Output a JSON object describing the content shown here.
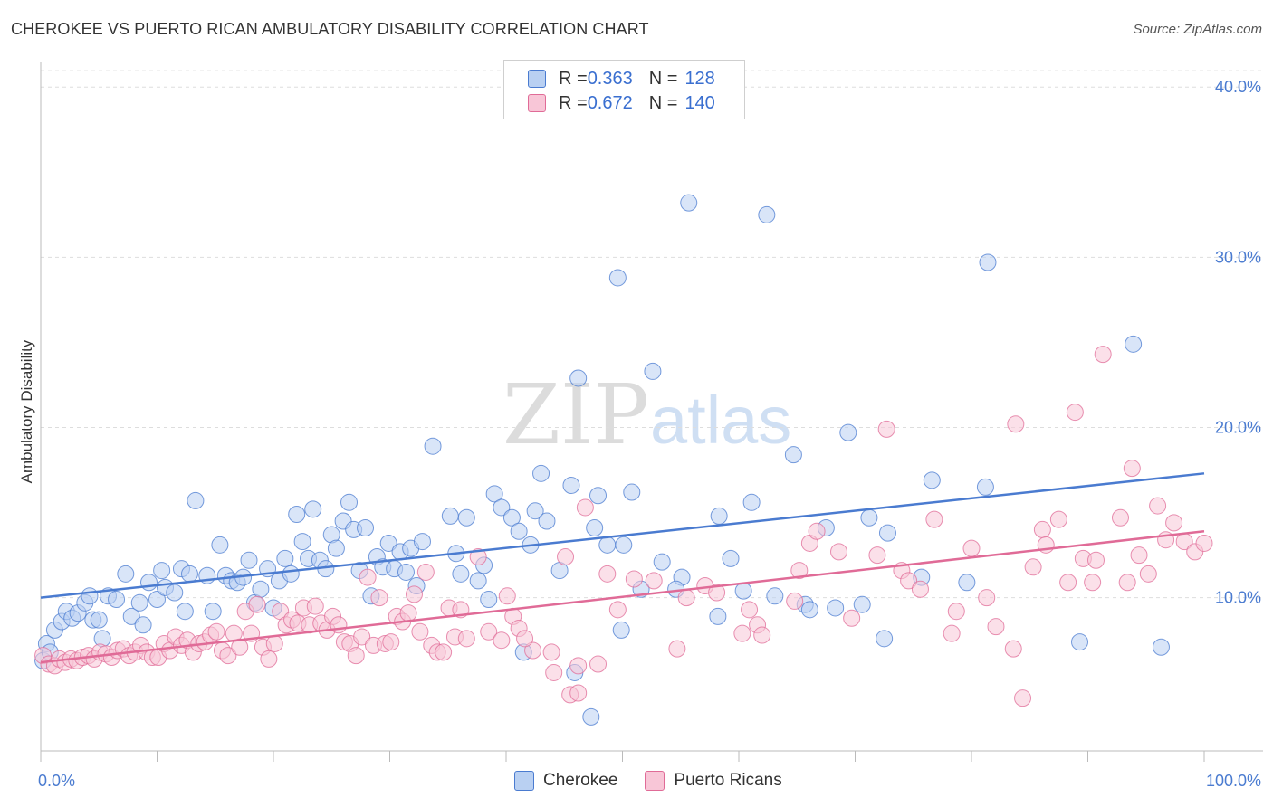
{
  "title": "CHEROKEE VS PUERTO RICAN AMBULATORY DISABILITY CORRELATION CHART",
  "source": "Source: ZipAtlas.com",
  "watermark": {
    "zip": "ZIP",
    "atlas": "atlas"
  },
  "legend_top": [
    {
      "r_label": "R = ",
      "r_value": "0.363",
      "n_label": "N = ",
      "n_value": "128",
      "color": "#4a7bd0",
      "fill": "#b9d0f2"
    },
    {
      "r_label": "R = ",
      "r_value": "0.672",
      "n_label": "N = ",
      "n_value": "140",
      "color": "#e06b97",
      "fill": "#f8c6d7"
    }
  ],
  "legend_bottom": [
    {
      "label": "Cherokee",
      "color": "#4a7bd0",
      "fill": "#b9d0f2"
    },
    {
      "label": "Puerto Ricans",
      "color": "#e06b97",
      "fill": "#f8c6d7"
    }
  ],
  "chart_data": {
    "type": "scatter",
    "title": "CHEROKEE VS PUERTO RICAN AMBULATORY DISABILITY CORRELATION CHART",
    "xlabel": "",
    "ylabel": "Ambulatory Disability",
    "xlim": [
      0,
      100
    ],
    "ylim": [
      1,
      41.5
    ],
    "x_tick_labels": [
      "0.0%",
      "100.0%"
    ],
    "y_ticks": [
      10,
      20,
      30,
      40
    ],
    "y_tick_labels": [
      "10.0%",
      "20.0%",
      "30.0%",
      "40.0%"
    ],
    "grid": "horizontal dashed",
    "legend": "top-center",
    "series": [
      {
        "name": "Cherokee",
        "color": "#4a7bd0",
        "fill": "#b9d0f2",
        "trend": {
          "x": [
            0,
            100
          ],
          "y": [
            10.0,
            17.3
          ]
        },
        "points": [
          [
            0.2,
            6.3
          ],
          [
            0.5,
            7.3
          ],
          [
            0.8,
            6.8
          ],
          [
            1.2,
            8.1
          ],
          [
            1.8,
            8.6
          ],
          [
            2.2,
            9.2
          ],
          [
            2.7,
            8.8
          ],
          [
            3.2,
            9.1
          ],
          [
            3.8,
            9.7
          ],
          [
            4.2,
            10.1
          ],
          [
            4.5,
            8.7
          ],
          [
            5.0,
            8.7
          ],
          [
            5.3,
            7.6
          ],
          [
            5.8,
            10.1
          ],
          [
            6.5,
            9.9
          ],
          [
            7.3,
            11.4
          ],
          [
            7.8,
            8.9
          ],
          [
            8.5,
            9.7
          ],
          [
            8.8,
            8.4
          ],
          [
            9.3,
            10.9
          ],
          [
            10.0,
            9.9
          ],
          [
            10.4,
            11.6
          ],
          [
            10.7,
            10.6
          ],
          [
            11.5,
            10.3
          ],
          [
            12.1,
            11.7
          ],
          [
            12.4,
            9.2
          ],
          [
            12.8,
            11.4
          ],
          [
            13.3,
            15.7
          ],
          [
            14.3,
            11.3
          ],
          [
            14.8,
            9.2
          ],
          [
            15.4,
            13.1
          ],
          [
            15.9,
            11.3
          ],
          [
            16.4,
            11.0
          ],
          [
            16.9,
            10.9
          ],
          [
            17.4,
            11.2
          ],
          [
            17.9,
            12.2
          ],
          [
            18.4,
            9.7
          ],
          [
            18.9,
            10.5
          ],
          [
            19.5,
            11.7
          ],
          [
            20.0,
            9.4
          ],
          [
            20.5,
            11.0
          ],
          [
            21.0,
            12.3
          ],
          [
            21.5,
            11.4
          ],
          [
            22.0,
            14.9
          ],
          [
            22.5,
            13.3
          ],
          [
            23.0,
            12.3
          ],
          [
            23.4,
            15.2
          ],
          [
            24.0,
            12.2
          ],
          [
            24.5,
            11.7
          ],
          [
            25.0,
            13.7
          ],
          [
            25.4,
            12.9
          ],
          [
            26.0,
            14.5
          ],
          [
            26.5,
            15.6
          ],
          [
            26.9,
            14.0
          ],
          [
            27.4,
            11.6
          ],
          [
            27.9,
            14.1
          ],
          [
            28.4,
            10.1
          ],
          [
            28.9,
            12.4
          ],
          [
            29.4,
            11.8
          ],
          [
            29.9,
            13.2
          ],
          [
            30.4,
            11.7
          ],
          [
            30.9,
            12.7
          ],
          [
            31.4,
            11.5
          ],
          [
            31.8,
            12.9
          ],
          [
            32.3,
            10.7
          ],
          [
            32.8,
            13.3
          ],
          [
            33.7,
            18.9
          ],
          [
            35.2,
            14.8
          ],
          [
            35.7,
            12.6
          ],
          [
            36.1,
            11.4
          ],
          [
            36.6,
            14.7
          ],
          [
            37.6,
            11.0
          ],
          [
            38.1,
            11.9
          ],
          [
            38.5,
            9.9
          ],
          [
            39.0,
            16.1
          ],
          [
            39.6,
            15.3
          ],
          [
            40.5,
            14.7
          ],
          [
            41.1,
            13.9
          ],
          [
            41.5,
            6.8
          ],
          [
            42.1,
            13.1
          ],
          [
            42.5,
            15.1
          ],
          [
            43.0,
            17.3
          ],
          [
            43.5,
            14.5
          ],
          [
            44.6,
            11.6
          ],
          [
            45.6,
            16.6
          ],
          [
            45.9,
            5.6
          ],
          [
            46.2,
            22.9
          ],
          [
            47.6,
            14.1
          ],
          [
            47.9,
            16.0
          ],
          [
            48.7,
            13.1
          ],
          [
            49.6,
            28.8
          ],
          [
            49.9,
            8.1
          ],
          [
            50.1,
            13.1
          ],
          [
            50.8,
            16.2
          ],
          [
            51.6,
            10.5
          ],
          [
            52.6,
            23.3
          ],
          [
            55.1,
            11.2
          ],
          [
            55.7,
            33.2
          ],
          [
            58.2,
            8.9
          ],
          [
            58.3,
            14.8
          ],
          [
            59.3,
            12.3
          ],
          [
            60.4,
            10.4
          ],
          [
            61.1,
            15.6
          ],
          [
            62.4,
            32.5
          ],
          [
            63.1,
            10.1
          ],
          [
            65.7,
            9.6
          ],
          [
            64.7,
            18.4
          ],
          [
            66.1,
            9.3
          ],
          [
            67.5,
            14.1
          ],
          [
            68.3,
            9.4
          ],
          [
            69.4,
            19.7
          ],
          [
            70.6,
            9.6
          ],
          [
            71.2,
            14.7
          ],
          [
            72.5,
            7.6
          ],
          [
            72.8,
            13.8
          ],
          [
            75.7,
            11.2
          ],
          [
            76.6,
            16.9
          ],
          [
            79.6,
            10.9
          ],
          [
            81.2,
            16.5
          ],
          [
            81.4,
            29.7
          ],
          [
            89.3,
            7.4
          ],
          [
            93.9,
            24.9
          ],
          [
            96.3,
            7.1
          ],
          [
            54.6,
            10.5
          ],
          [
            53.4,
            12.1
          ],
          [
            47.3,
            3.0
          ]
        ]
      },
      {
        "name": "Puerto Ricans",
        "color": "#e06b97",
        "fill": "#f8c6d7",
        "trend": {
          "x": [
            0,
            100
          ],
          "y": [
            6.2,
            13.9
          ]
        },
        "points": [
          [
            0.2,
            6.6
          ],
          [
            0.7,
            6.1
          ],
          [
            1.2,
            6.0
          ],
          [
            1.6,
            6.4
          ],
          [
            2.1,
            6.2
          ],
          [
            2.6,
            6.4
          ],
          [
            3.1,
            6.3
          ],
          [
            3.6,
            6.5
          ],
          [
            4.1,
            6.6
          ],
          [
            4.6,
            6.4
          ],
          [
            5.1,
            6.8
          ],
          [
            5.6,
            6.7
          ],
          [
            6.1,
            6.5
          ],
          [
            6.6,
            6.9
          ],
          [
            7.1,
            7.0
          ],
          [
            7.6,
            6.6
          ],
          [
            8.1,
            6.8
          ],
          [
            8.6,
            7.2
          ],
          [
            9.1,
            6.8
          ],
          [
            9.6,
            6.5
          ],
          [
            10.1,
            6.5
          ],
          [
            10.6,
            7.3
          ],
          [
            11.1,
            6.9
          ],
          [
            11.6,
            7.7
          ],
          [
            12.1,
            7.2
          ],
          [
            12.6,
            7.5
          ],
          [
            13.1,
            6.8
          ],
          [
            13.6,
            7.3
          ],
          [
            14.1,
            7.4
          ],
          [
            14.6,
            7.8
          ],
          [
            15.1,
            8.0
          ],
          [
            15.6,
            6.9
          ],
          [
            16.1,
            6.6
          ],
          [
            16.6,
            7.9
          ],
          [
            17.1,
            7.1
          ],
          [
            17.6,
            9.2
          ],
          [
            18.1,
            7.9
          ],
          [
            18.6,
            9.6
          ],
          [
            19.1,
            7.1
          ],
          [
            19.6,
            6.4
          ],
          [
            20.1,
            7.3
          ],
          [
            20.6,
            9.2
          ],
          [
            21.1,
            8.4
          ],
          [
            21.6,
            8.7
          ],
          [
            22.1,
            8.5
          ],
          [
            22.6,
            9.4
          ],
          [
            23.1,
            8.4
          ],
          [
            23.6,
            9.5
          ],
          [
            24.1,
            8.5
          ],
          [
            24.6,
            8.1
          ],
          [
            25.1,
            8.9
          ],
          [
            25.6,
            8.4
          ],
          [
            26.1,
            7.4
          ],
          [
            26.6,
            7.3
          ],
          [
            27.1,
            6.6
          ],
          [
            27.6,
            7.7
          ],
          [
            28.1,
            11.2
          ],
          [
            28.6,
            7.2
          ],
          [
            29.1,
            10.0
          ],
          [
            29.6,
            7.3
          ],
          [
            30.1,
            7.4
          ],
          [
            30.6,
            8.9
          ],
          [
            31.1,
            8.6
          ],
          [
            31.6,
            9.1
          ],
          [
            32.1,
            10.2
          ],
          [
            32.6,
            8.0
          ],
          [
            33.1,
            11.5
          ],
          [
            33.6,
            7.2
          ],
          [
            34.1,
            6.8
          ],
          [
            34.6,
            6.8
          ],
          [
            35.1,
            9.4
          ],
          [
            35.6,
            7.7
          ],
          [
            36.1,
            9.3
          ],
          [
            36.6,
            7.6
          ],
          [
            37.6,
            12.4
          ],
          [
            38.5,
            8.0
          ],
          [
            39.6,
            7.5
          ],
          [
            40.1,
            10.1
          ],
          [
            40.6,
            8.9
          ],
          [
            41.1,
            8.2
          ],
          [
            42.3,
            6.9
          ],
          [
            43.9,
            6.8
          ],
          [
            45.1,
            12.4
          ],
          [
            45.5,
            4.3
          ],
          [
            46.2,
            6.0
          ],
          [
            46.8,
            15.3
          ],
          [
            47.9,
            6.1
          ],
          [
            48.7,
            11.4
          ],
          [
            49.6,
            9.3
          ],
          [
            51.0,
            11.1
          ],
          [
            52.7,
            11.0
          ],
          [
            54.7,
            7.0
          ],
          [
            55.5,
            10.0
          ],
          [
            57.1,
            10.7
          ],
          [
            58.1,
            10.3
          ],
          [
            60.3,
            7.9
          ],
          [
            60.9,
            9.3
          ],
          [
            61.6,
            8.4
          ],
          [
            62.0,
            7.8
          ],
          [
            64.8,
            9.8
          ],
          [
            65.2,
            11.6
          ],
          [
            66.1,
            13.2
          ],
          [
            66.7,
            13.9
          ],
          [
            68.6,
            12.7
          ],
          [
            69.7,
            8.8
          ],
          [
            71.9,
            12.5
          ],
          [
            72.7,
            19.9
          ],
          [
            74.0,
            11.6
          ],
          [
            74.6,
            11.0
          ],
          [
            75.6,
            10.5
          ],
          [
            76.8,
            14.6
          ],
          [
            78.3,
            7.9
          ],
          [
            78.7,
            9.2
          ],
          [
            80.0,
            12.9
          ],
          [
            81.3,
            10.0
          ],
          [
            82.1,
            8.3
          ],
          [
            83.8,
            20.2
          ],
          [
            83.6,
            7.0
          ],
          [
            84.4,
            4.1
          ],
          [
            85.3,
            11.8
          ],
          [
            86.1,
            14.0
          ],
          [
            86.4,
            13.1
          ],
          [
            87.5,
            14.6
          ],
          [
            88.3,
            10.9
          ],
          [
            88.9,
            20.9
          ],
          [
            89.6,
            12.3
          ],
          [
            90.4,
            10.9
          ],
          [
            90.7,
            12.2
          ],
          [
            91.3,
            24.3
          ],
          [
            92.8,
            14.7
          ],
          [
            93.4,
            10.9
          ],
          [
            94.4,
            12.5
          ],
          [
            95.2,
            11.4
          ],
          [
            96.7,
            13.4
          ],
          [
            97.4,
            14.4
          ],
          [
            98.3,
            13.3
          ],
          [
            99.2,
            12.7
          ],
          [
            100.0,
            13.2
          ],
          [
            93.8,
            17.6
          ],
          [
            96.0,
            15.4
          ],
          [
            44.1,
            5.6
          ],
          [
            46.2,
            4.4
          ],
          [
            41.6,
            7.6
          ]
        ]
      }
    ]
  }
}
